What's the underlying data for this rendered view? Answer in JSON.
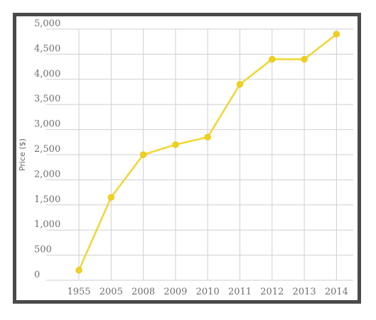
{
  "chart_data": {
    "type": "line",
    "title": "",
    "xlabel": "",
    "ylabel": "Price ($)",
    "categories": [
      "1955",
      "2005",
      "2008",
      "2009",
      "2010",
      "2011",
      "2012",
      "2013",
      "2014"
    ],
    "series": [
      {
        "values": [
          200,
          1650,
          2500,
          2700,
          2850,
          3900,
          4400,
          4400,
          4900
        ]
      }
    ],
    "ylim": [
      0,
      5000
    ],
    "yticks": [
      0,
      500,
      1000,
      1500,
      2000,
      2500,
      3000,
      3500,
      4000,
      4500,
      5000
    ],
    "ytick_labels": [
      "0",
      "500",
      "1,000",
      "1,500",
      "2,000",
      "2,500",
      "3,000",
      "3,500",
      "4,000",
      "4,500",
      "5,000"
    ],
    "grid": true,
    "legend": "none",
    "colors": {
      "line": "#f2d630",
      "marker": "#f0d020",
      "grid": "#cfcfd4",
      "frame": "#4a4a4a"
    }
  }
}
